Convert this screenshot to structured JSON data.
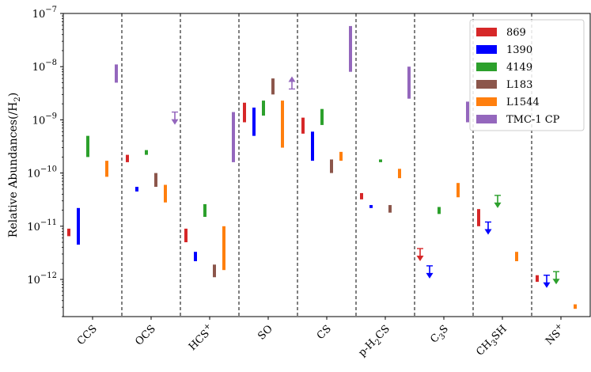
{
  "chart_data": {
    "type": "range",
    "ylabel": "Relative Abundances(/H$_2$)",
    "y_scale": "log",
    "ylim": [
      2e-13,
      1e-07
    ],
    "y_ticks": [
      {
        "value": 1e-12,
        "base": "10",
        "exp": "−12"
      },
      {
        "value": 1e-11,
        "base": "10",
        "exp": "−11"
      },
      {
        "value": 1e-10,
        "base": "10",
        "exp": "−10"
      },
      {
        "value": 1e-09,
        "base": "10",
        "exp": "−9"
      },
      {
        "value": 1e-08,
        "base": "10",
        "exp": "−8"
      },
      {
        "value": 1e-07,
        "base": "10",
        "exp": "−7"
      }
    ],
    "categories": [
      {
        "main": "CCS",
        "sub": "",
        "post": "",
        "sup": ""
      },
      {
        "main": "OCS",
        "sub": "",
        "post": "",
        "sup": ""
      },
      {
        "main": "HCS",
        "sub": "",
        "post": "",
        "sup": "+"
      },
      {
        "main": "SO",
        "sub": "",
        "post": "",
        "sup": ""
      },
      {
        "main": "CS",
        "sub": "",
        "post": "",
        "sup": ""
      },
      {
        "main": "p-H",
        "sub": "2",
        "post": "CS",
        "sup": ""
      },
      {
        "main": "C",
        "sub": "3",
        "post": "S",
        "sup": ""
      },
      {
        "main": "CH",
        "sub": "3",
        "post": "SH",
        "sup": ""
      },
      {
        "main": "NS",
        "sub": "",
        "post": "",
        "sup": "+"
      }
    ],
    "legend_position": "top-right",
    "series": [
      {
        "name": "869",
        "color": "#d62728",
        "data": [
          {
            "lo": 6.5e-12,
            "hi": 9e-12
          },
          {
            "lo": 1.6e-10,
            "hi": 2.2e-10
          },
          {
            "lo": 5e-12,
            "hi": 9e-12
          },
          {
            "lo": 9e-10,
            "hi": 2.1e-09
          },
          {
            "lo": 5.5e-10,
            "hi": 1.1e-09
          },
          {
            "lo": 3.2e-11,
            "hi": 4.2e-11
          },
          {
            "upper": 3.8e-12
          },
          {
            "lo": 1e-11,
            "hi": 2.1e-11
          },
          {
            "lo": 9e-13,
            "hi": 1.2e-12
          }
        ]
      },
      {
        "name": "1390",
        "color": "#0000ff",
        "data": [
          {
            "lo": 4.5e-12,
            "hi": 2.2e-11
          },
          {
            "lo": 4.5e-11,
            "hi": 5.5e-11
          },
          {
            "lo": 2.2e-12,
            "hi": 3.3e-12
          },
          {
            "lo": 5e-10,
            "hi": 1.7e-09
          },
          {
            "lo": 1.7e-10,
            "hi": 6e-10
          },
          {
            "lo": 2.2e-11,
            "hi": 2.5e-11
          },
          {
            "upper": 1.8e-12
          },
          {
            "upper": 1.2e-11
          },
          {
            "upper": 1.2e-12
          }
        ]
      },
      {
        "name": "4149",
        "color": "#2ca02c",
        "data": [
          {
            "lo": 2e-10,
            "hi": 5e-10
          },
          {
            "lo": 2.2e-10,
            "hi": 2.7e-10
          },
          {
            "lo": 1.5e-11,
            "hi": 2.6e-11
          },
          {
            "lo": 1.2e-09,
            "hi": 2.3e-09
          },
          {
            "lo": 8e-10,
            "hi": 1.6e-09
          },
          {
            "lo": 1.6e-10,
            "hi": 1.8e-10
          },
          {
            "lo": 1.7e-11,
            "hi": 2.3e-11
          },
          {
            "upper": 3.8e-11
          },
          {
            "upper": 1.4e-12
          }
        ]
      },
      {
        "name": "L183",
        "color": "#8c564b",
        "data": [
          null,
          {
            "lo": 5.5e-11,
            "hi": 1e-10
          },
          {
            "lo": 1.1e-12,
            "hi": 1.9e-12
          },
          {
            "lo": 3e-09,
            "hi": 6e-09
          },
          {
            "lo": 1e-10,
            "hi": 1.8e-10
          },
          {
            "lo": 1.8e-11,
            "hi": 2.5e-11
          },
          null,
          null,
          null
        ]
      },
      {
        "name": "L1544",
        "color": "#ff7f0e",
        "data": [
          {
            "lo": 8.5e-11,
            "hi": 1.7e-10
          },
          {
            "lo": 2.8e-11,
            "hi": 6e-11
          },
          {
            "lo": 1.5e-12,
            "hi": 1e-11
          },
          {
            "lo": 3e-10,
            "hi": 2.3e-09
          },
          {
            "lo": 1.7e-10,
            "hi": 2.5e-10
          },
          {
            "lo": 8e-11,
            "hi": 1.2e-10
          },
          {
            "lo": 3.5e-11,
            "hi": 6.5e-11
          },
          {
            "lo": 2.2e-12,
            "hi": 3.3e-12
          },
          {
            "lo": 2.8e-13,
            "hi": 3.4e-13
          }
        ]
      },
      {
        "name": "TMC-1 CP",
        "color": "#9467bd",
        "data": [
          {
            "lo": 5e-09,
            "hi": 1.1e-08
          },
          {
            "upper": 1.4e-09
          },
          {
            "lo": 1.6e-10,
            "hi": 1.4e-09
          },
          {
            "lower": 3.8e-09
          },
          {
            "lo": 8e-09,
            "hi": 5.8e-08
          },
          {
            "lo": 2.5e-09,
            "hi": 1e-08
          },
          {
            "lo": 9e-10,
            "hi": 2.2e-09
          },
          null,
          null
        ]
      }
    ]
  }
}
